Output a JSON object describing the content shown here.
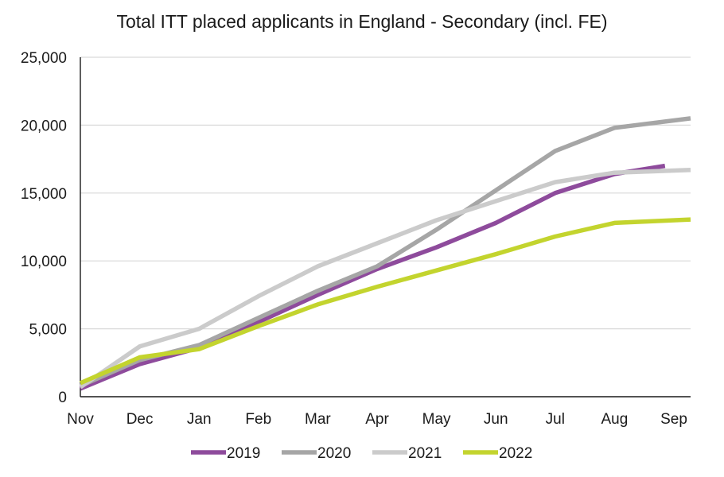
{
  "chart_data": {
    "type": "line",
    "title": "Total ITT placed applicants in England - Secondary (incl. FE)",
    "xlabel": "",
    "ylabel": "",
    "categories": [
      "Nov",
      "Dec",
      "Jan",
      "Feb",
      "Mar",
      "Apr",
      "May",
      "Jun",
      "Jul",
      "Aug",
      "Sep"
    ],
    "ylim": [
      0,
      25000
    ],
    "yticks": [
      0,
      5000,
      10000,
      15000,
      20000,
      25000
    ],
    "ytick_labels": [
      "0",
      "5,000",
      "10,000",
      "15,000",
      "20,000",
      "25,000"
    ],
    "grid": true,
    "legend_position": "bottom",
    "series": [
      {
        "name": "2019",
        "color": "#8e4b9c",
        "x": [
          0,
          1,
          2,
          3,
          4,
          5,
          6,
          7,
          8,
          9,
          9.85
        ],
        "values": [
          600,
          2400,
          3600,
          5500,
          7500,
          9400,
          11000,
          12800,
          15000,
          16400,
          17000
        ]
      },
      {
        "name": "2020",
        "color": "#a6a6a6",
        "x": [
          0,
          1,
          2,
          3,
          4,
          5,
          6,
          7,
          8,
          9,
          10.3
        ],
        "values": [
          800,
          2700,
          3800,
          5800,
          7800,
          9600,
          12300,
          15200,
          18100,
          19800,
          20500
        ]
      },
      {
        "name": "2021",
        "color": "#cbcbcb",
        "x": [
          0,
          1,
          2,
          3,
          4,
          5,
          6,
          7,
          8,
          9,
          10.3
        ],
        "values": [
          700,
          3700,
          5000,
          7400,
          9600,
          11300,
          13000,
          14400,
          15800,
          16500,
          16700
        ]
      },
      {
        "name": "2022",
        "color": "#c3d42e",
        "x": [
          0,
          1,
          2,
          3,
          4,
          5,
          6,
          7,
          8,
          9,
          10.3
        ],
        "values": [
          1000,
          2900,
          3500,
          5200,
          6800,
          8100,
          9300,
          10500,
          11800,
          12800,
          13050
        ]
      }
    ]
  }
}
